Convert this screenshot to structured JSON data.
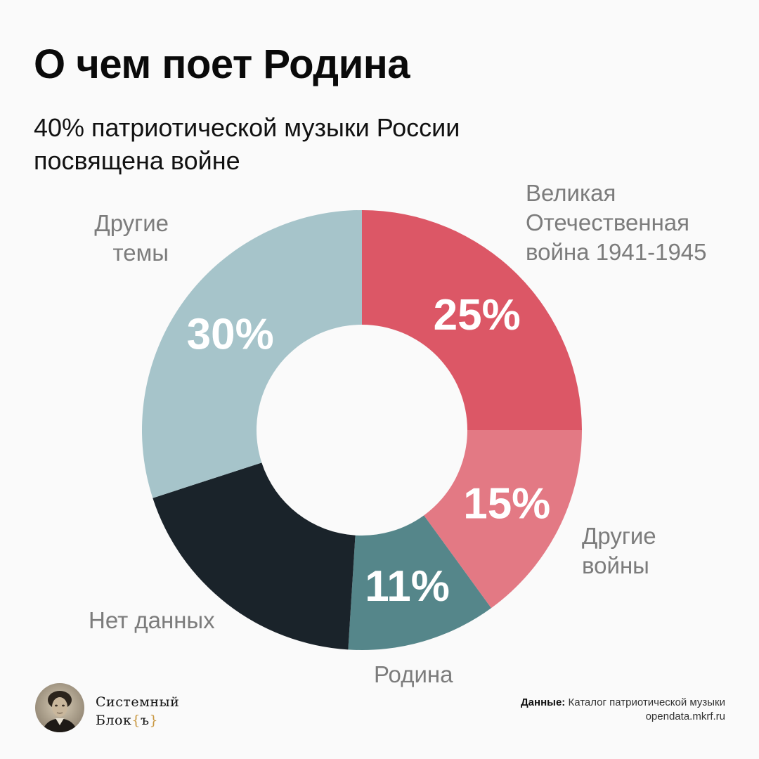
{
  "title": "О чем поет Родина",
  "subtitle": "40% патриотической музыки России посвящена войне",
  "chart_data": {
    "type": "pie",
    "donut": true,
    "categories": [
      "Великая Отечественная война 1941-1945",
      "Другие войны",
      "Родина",
      "Нет данных",
      "Другие темы"
    ],
    "values": [
      25,
      15,
      11,
      19,
      30
    ],
    "value_labels": [
      "25%",
      "15%",
      "11%",
      "",
      "30%"
    ],
    "colors": [
      "#dc5766",
      "#e37984",
      "#55868a",
      "#1a232a",
      "#a6c4ca"
    ],
    "legend": "labels-outside"
  },
  "labels": {
    "gpw": "Великая\nОтечественная\nвойна 1941-1945",
    "other_wars": "Другие\nвойны",
    "rodina": "Родина",
    "no_data": "Нет данных",
    "other_topics": "Другие\nтемы"
  },
  "footer": {
    "brand_line1": "Системный",
    "brand_line2_word": "Блок",
    "brand_open_brace": "{",
    "brand_glyph": "ъ",
    "brand_close_brace": "}",
    "source_label": "Данные:",
    "source_name": "Каталог патриотической музыки",
    "source_url": "opendata.mkrf.ru"
  }
}
